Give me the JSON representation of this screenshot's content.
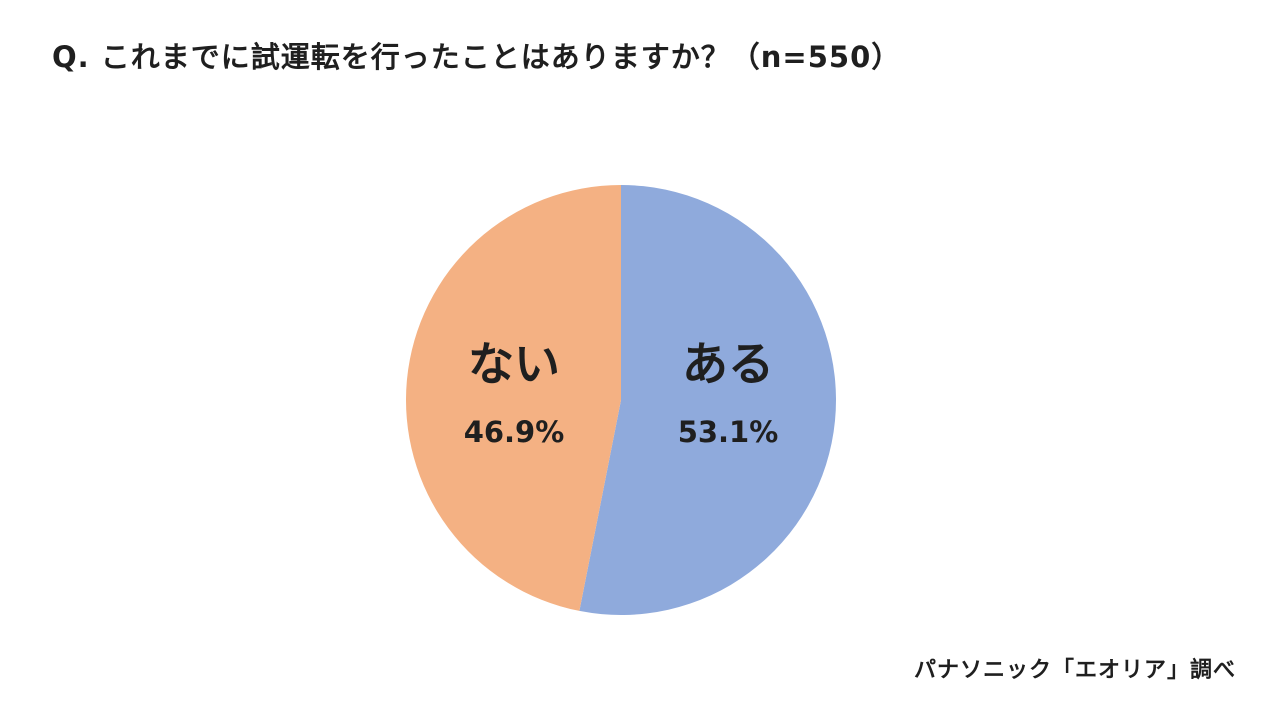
{
  "title": "Q. これまでに試運転を行ったことはありますか？（n=550）",
  "source": "パナソニック「エオリア」調べ",
  "colors": {
    "aru": "#8faadc",
    "nai": "#f4b183",
    "text": "#1f1f1f",
    "background": "#ffffff"
  },
  "chart_data": {
    "type": "pie",
    "title": "Q. これまでに試運転を行ったことはありますか？（n=550）",
    "n": 550,
    "start_angle": "12 o'clock",
    "direction": "clockwise",
    "slices": [
      {
        "label": "ある",
        "value": 53.1,
        "value_label": "53.1%",
        "color": "#8faadc"
      },
      {
        "label": "ない",
        "value": 46.9,
        "value_label": "46.9%",
        "color": "#f4b183"
      }
    ]
  }
}
